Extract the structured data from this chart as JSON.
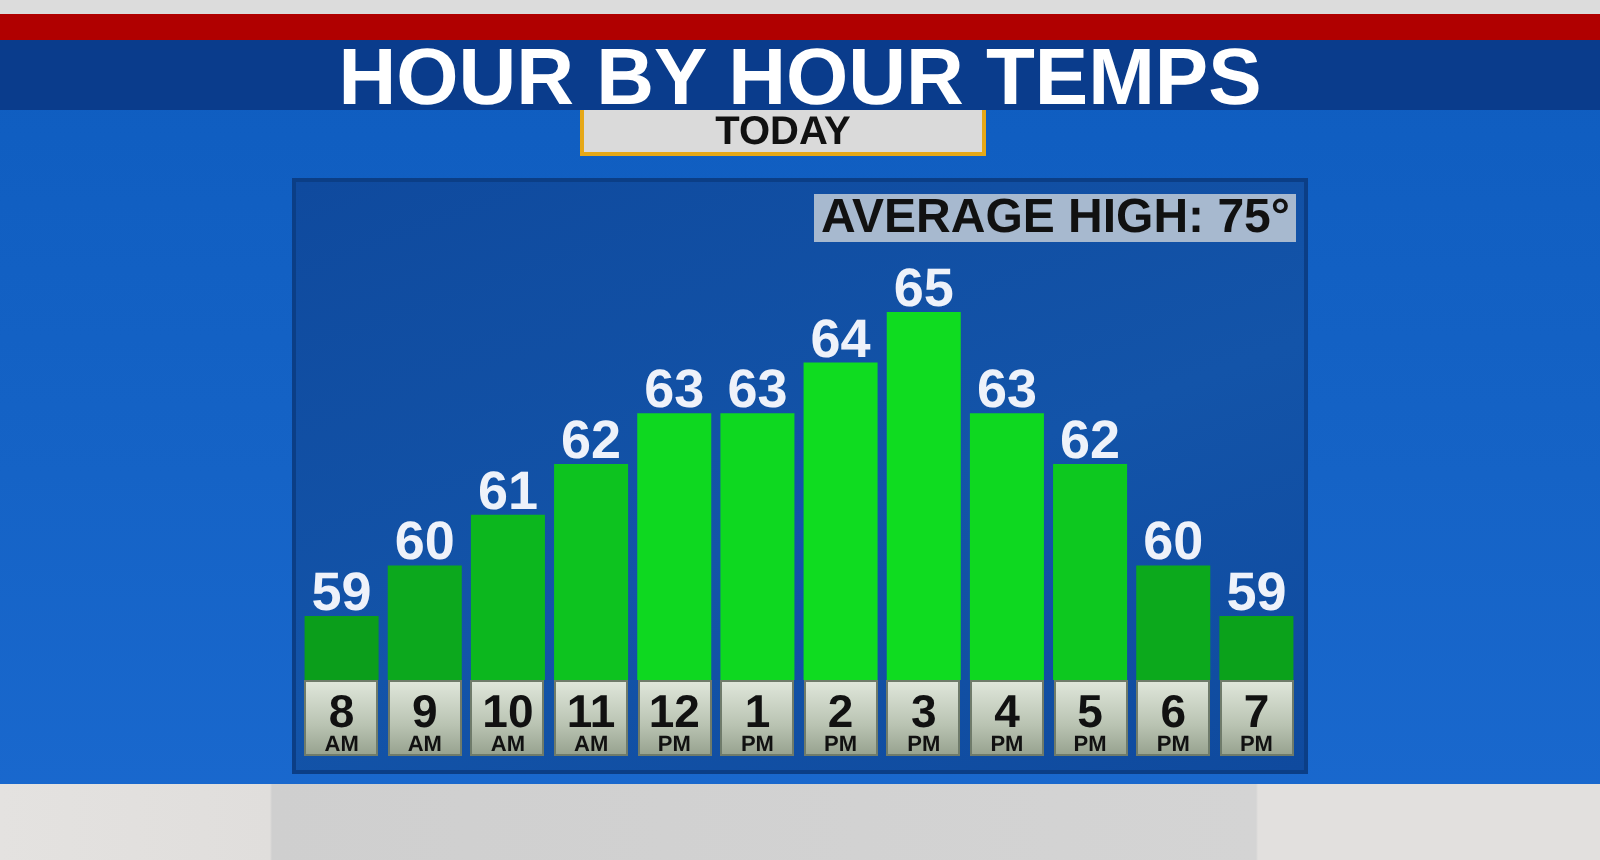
{
  "chart_data": {
    "type": "bar",
    "title": "HOUR BY HOUR TEMPS",
    "subtitle": "TODAY",
    "annotations": [
      "AVERAGE HIGH: 75°"
    ],
    "categories": [
      "8 AM",
      "9 AM",
      "10 AM",
      "11 AM",
      "12 PM",
      "1 PM",
      "2 PM",
      "3 PM",
      "4 PM",
      "5 PM",
      "6 PM",
      "7 PM"
    ],
    "values": [
      59,
      60,
      61,
      62,
      63,
      63,
      64,
      65,
      63,
      62,
      60,
      59
    ],
    "colors": [
      "#0b9e1b",
      "#0ca81d",
      "#0cb71e",
      "#0dc31f",
      "#0ed820",
      "#0ed820",
      "#0fdc20",
      "#0fdc20",
      "#0ed820",
      "#0dc81f",
      "#0ca91c",
      "#0ba21b"
    ],
    "tick_labels": "x",
    "data_labels": true
  }
}
